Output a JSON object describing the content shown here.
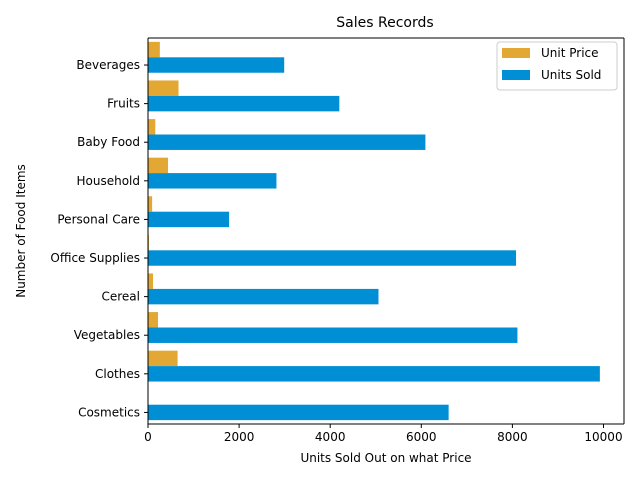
{
  "chart_data": {
    "type": "bar",
    "orientation": "horizontal",
    "title": "Sales Records",
    "xlabel": "Units Sold Out on what Price",
    "ylabel": "Number of Food Items",
    "categories": [
      "Cosmetics",
      "Clothes",
      "Vegetables",
      "Cereal",
      "Office Supplies",
      "Personal Care",
      "Household",
      "Baby Food",
      "Fruits",
      "Beverages"
    ],
    "series": [
      {
        "name": "Unit Price",
        "color": "#E3A833",
        "values": [
          0,
          650,
          220,
          110,
          20,
          90,
          440,
          160,
          670,
          260
        ]
      },
      {
        "name": "Units Sold",
        "color": "#008FD5",
        "values": [
          6600,
          9920,
          8110,
          5060,
          8080,
          1780,
          2820,
          6090,
          4200,
          2990
        ]
      }
    ],
    "xlim": [
      0,
      10450
    ],
    "xticks": [
      0,
      2000,
      4000,
      6000,
      8000,
      10000
    ],
    "grid": false,
    "legend_position": "top-right"
  }
}
